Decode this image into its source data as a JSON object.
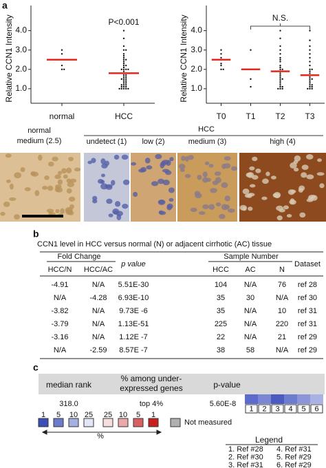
{
  "chart_data": [
    {
      "type": "strip",
      "ylabel": "Relative CCN1 Intensity",
      "annotation": "P<0.001",
      "categories": [
        "normal",
        "HCC"
      ],
      "points": [
        [
          3.0,
          2.8,
          2.5,
          2.2,
          2.0,
          2.0
        ],
        [
          4.0,
          3.6,
          3.2,
          3.0,
          3.0,
          2.8,
          2.7,
          2.6,
          2.5,
          2.5,
          2.4,
          2.3,
          2.2,
          2.2,
          2.1,
          2.0,
          2.0,
          2.0,
          2.0,
          1.9,
          1.8,
          1.8,
          1.7,
          1.7,
          1.6,
          1.6,
          1.5,
          1.5,
          1.5,
          1.4,
          1.4,
          1.3,
          1.3,
          1.2,
          1.2,
          1.2,
          1.1,
          1.1,
          1.1,
          1.0,
          1.0,
          1.0,
          1.0,
          1.0
        ]
      ],
      "means": [
        2.5,
        1.8
      ],
      "point_color": "#111111",
      "mean_color": "#e0281e",
      "ylim": [
        0.25,
        5.3
      ],
      "yticks": [
        {
          "value": 1,
          "label": "1.0"
        },
        {
          "value": 2,
          "label": "2.0"
        },
        {
          "value": 3,
          "label": "3.0"
        },
        {
          "value": 4,
          "label": "4.0"
        }
      ]
    },
    {
      "type": "strip",
      "ylabel": "Relative CCN1 Intensity",
      "annotation": "N.S.",
      "categories": [
        "T0",
        "T1",
        "T2",
        "T3"
      ],
      "points": [
        [
          3.0,
          2.8,
          2.6,
          2.5,
          2.3,
          2.2,
          2.0,
          2.0
        ],
        [
          3.0,
          2.0,
          1.5,
          1.1
        ],
        [
          4.0,
          3.6,
          3.2,
          3.0,
          2.8,
          2.6,
          2.5,
          2.4,
          2.2,
          2.1,
          2.0,
          2.0,
          1.9,
          1.8,
          1.7,
          1.6,
          1.5,
          1.5,
          1.4,
          1.3,
          1.2,
          1.1,
          1.1,
          1.0,
          1.0,
          1.0
        ],
        [
          4.0,
          3.5,
          3.2,
          3.0,
          2.8,
          2.6,
          2.4,
          2.2,
          2.0,
          2.0,
          1.9,
          1.8,
          1.7,
          1.6,
          1.5,
          1.5,
          1.4,
          1.3,
          1.2,
          1.2,
          1.1,
          1.1,
          1.0,
          1.0,
          1.0
        ]
      ],
      "means": [
        2.5,
        2.0,
        1.9,
        1.7
      ],
      "point_color": "#111111",
      "mean_color": "#e0281e",
      "ylim": [
        0.25,
        5.3
      ],
      "yticks": [
        {
          "value": 1,
          "label": "1.0"
        },
        {
          "value": 2,
          "label": "2.0"
        },
        {
          "value": 3,
          "label": "3.0"
        },
        {
          "value": 4,
          "label": "4.0"
        }
      ]
    }
  ],
  "panel_labels": [
    "a",
    "b",
    "c"
  ],
  "images": {
    "normal_label": [
      "normal",
      "medium (2.5)"
    ],
    "group_label": "HCC",
    "labels": [
      "undetect (1)",
      "low (2)",
      "medium (3)",
      "high (4)"
    ]
  },
  "table": {
    "title": "CCN1 level in HCC versus normal (N) or adjacent cirrhotic (AC) tissue",
    "group_headers": [
      "Fold Change",
      "Sample Number"
    ],
    "headers": [
      "HCC/N",
      "HCC/AC",
      "p value",
      "HCC",
      "AC",
      "N",
      "Dataset"
    ],
    "rows": [
      [
        "-4.91",
        "N/A",
        "5.51E-30",
        "104",
        "N/A",
        "76",
        "ref 28"
      ],
      [
        "N/A",
        "-4.28",
        "6.93E-10",
        "35",
        "30",
        "N/A",
        "ref 30"
      ],
      [
        "-3.82",
        "N/A",
        "9.73E -6",
        "35",
        "N/A",
        "10",
        "ref 31"
      ],
      [
        "-3.79",
        "N/A",
        "1.13E-51",
        "225",
        "N/A",
        "220",
        "ref 31"
      ],
      [
        "-3.16",
        "N/A",
        "1.12E -7",
        "22",
        "N/A",
        "21",
        "ref 29"
      ],
      [
        "N/A",
        "-2.59",
        "8.57E -7",
        "38",
        "58",
        "N/A",
        "ref 29"
      ]
    ]
  },
  "summary": {
    "headers": [
      "median rank",
      [
        "% among under-",
        "expressed genes"
      ],
      "p-value"
    ],
    "values": [
      "318.0",
      "top 4%",
      "5.60E-8"
    ],
    "heatmap": {
      "cells": [
        "1",
        "2",
        "3",
        "4",
        "5",
        "6"
      ],
      "colors": [
        "#5d6ccb",
        "#7b87d3",
        "#4b5bc0",
        "#6e7cce",
        "#8b95d8",
        "#aab2e3"
      ]
    },
    "scale": {
      "blue_labels": [
        "1",
        "5",
        "10",
        "25"
      ],
      "blue_colors": [
        "#3b4fb8",
        "#6c7ccc",
        "#a6b0e0",
        "#e2e6f5"
      ],
      "red_labels": [
        "25",
        "10",
        "5",
        "1"
      ],
      "red_colors": [
        "#f6dede",
        "#eaa8a8",
        "#d86060",
        "#c81e1e"
      ],
      "unit": "%",
      "na_label": "Not measured",
      "na_color": "#b0b0b0"
    },
    "legend": {
      "title": "Legend",
      "items": [
        "1. Ref #28",
        "2. Ref #30",
        "3. Ref #31",
        "4. Ref #31",
        "5. Ref #29",
        "6. Ref #29"
      ]
    }
  }
}
